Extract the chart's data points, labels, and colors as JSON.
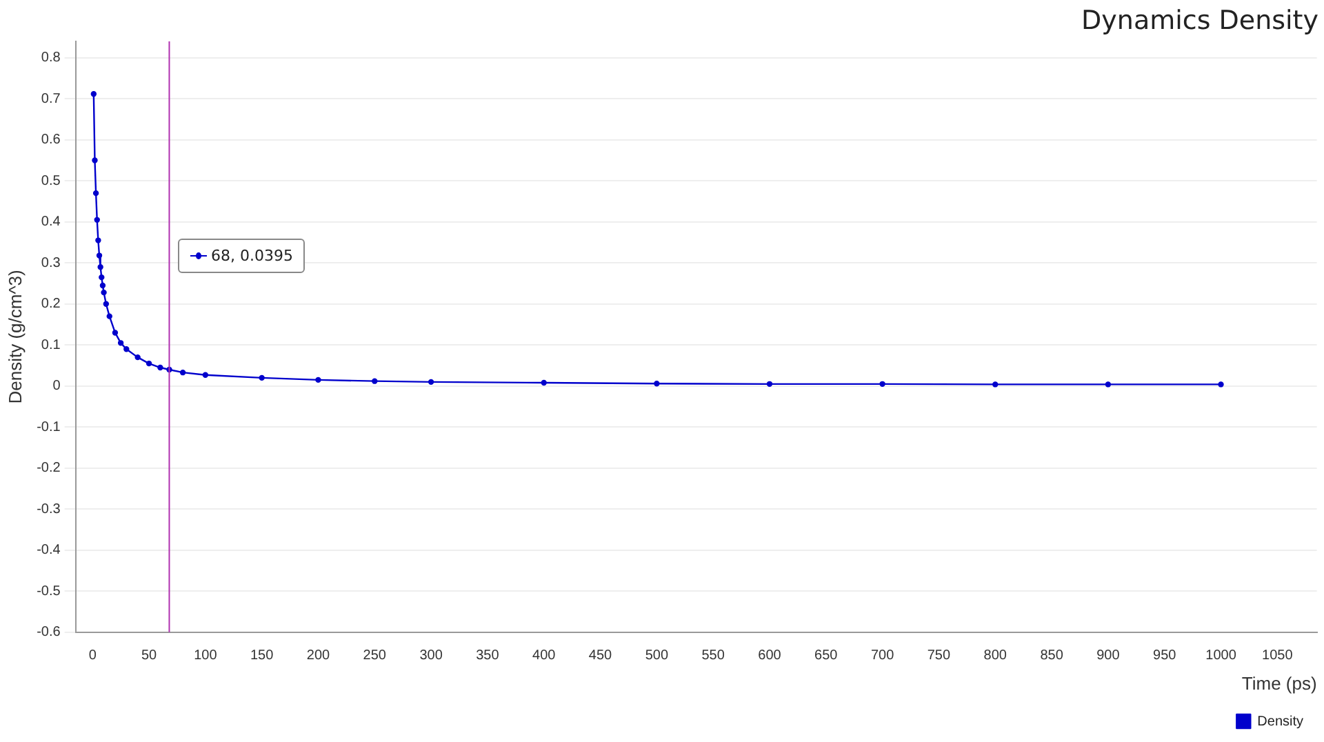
{
  "chart_data": {
    "type": "line",
    "title": "Dynamics Density",
    "xlabel": "Time (ps)",
    "ylabel": "Density (g/cm^3)",
    "series": [
      {
        "name": "Density",
        "color": "#0000cc",
        "x": [
          1,
          2,
          3,
          4,
          5,
          6,
          7,
          8,
          9,
          10,
          12,
          15,
          20,
          25,
          30,
          40,
          50,
          60,
          68,
          80,
          100,
          150,
          200,
          250,
          300,
          400,
          500,
          600,
          700,
          800,
          900,
          1000
        ],
        "values": [
          0.712,
          0.55,
          0.47,
          0.405,
          0.355,
          0.318,
          0.29,
          0.265,
          0.245,
          0.228,
          0.2,
          0.17,
          0.13,
          0.105,
          0.09,
          0.07,
          0.055,
          0.045,
          0.04,
          0.033,
          0.027,
          0.02,
          0.015,
          0.012,
          0.01,
          0.008,
          0.006,
          0.005,
          0.005,
          0.004,
          0.004,
          0.004
        ]
      }
    ],
    "xlim": [
      -15,
      1085
    ],
    "xticks": [
      0,
      50,
      100,
      150,
      200,
      250,
      300,
      350,
      400,
      450,
      500,
      550,
      600,
      650,
      700,
      750,
      800,
      850,
      900,
      950,
      1000,
      1050
    ],
    "ylim": [
      -0.6,
      0.84
    ],
    "yticks": [
      -0.6,
      -0.5,
      -0.4,
      -0.3,
      -0.2,
      -0.1,
      0,
      0.1,
      0.2,
      0.3,
      0.4,
      0.5,
      0.6,
      0.7,
      0.8
    ],
    "ref_lines": [
      {
        "axis": "x",
        "value": 68,
        "color": "#b030b0"
      }
    ],
    "annotations": [
      "68, 0.0395"
    ],
    "grid": "y",
    "legend": "bottom right",
    "marker": "circle",
    "line_style": "solid"
  }
}
